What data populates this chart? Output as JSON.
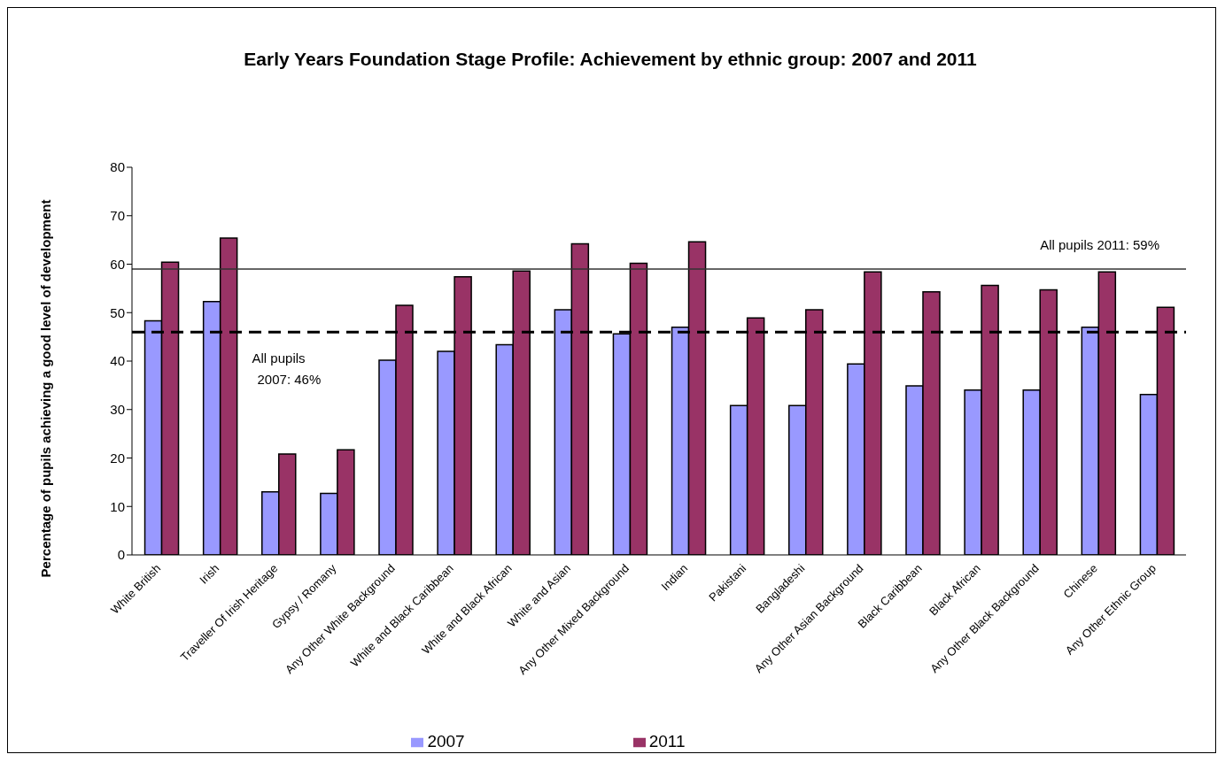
{
  "chart_data": {
    "type": "bar",
    "title": "Early Years Foundation Stage Profile: Achievement by ethnic group: 2007 and 2011",
    "ylabel": "Percentage of pupils achieving a good level of development",
    "categories": [
      "White British",
      "Irish",
      "Traveller Of Irish Heritage",
      "Gypsy / Romany",
      "Any Other White Background",
      "White and Black Caribbean",
      "White and Black African",
      "White and Asian",
      "Any Other Mixed Background",
      "Indian",
      "Pakistani",
      "Bangladeshi",
      "Any Other Asian Background",
      "Black Caribbean",
      "Black African",
      "Any Other Black Background",
      "Chinese",
      "Any Other Ethnic Group"
    ],
    "series": [
      {
        "name": "2007",
        "color": "#9999ff",
        "values": [
          48.3,
          52.3,
          13,
          12.7,
          40.2,
          42,
          43.4,
          50.6,
          45.6,
          47,
          30.8,
          30.8,
          39.4,
          34.9,
          34,
          34,
          47,
          33.1
        ]
      },
      {
        "name": "2011",
        "color": "#993366",
        "values": [
          60.4,
          65.4,
          20.8,
          21.7,
          51.5,
          57.4,
          58.6,
          64.2,
          60.2,
          64.6,
          48.9,
          50.6,
          58.4,
          54.3,
          55.6,
          54.7,
          58.4,
          51.1
        ]
      }
    ],
    "ylim": [
      0,
      80
    ],
    "yticks": [
      0,
      10,
      20,
      30,
      40,
      50,
      60,
      70,
      80
    ],
    "ref_lines": [
      {
        "axis": "y",
        "value": 59,
        "label": "All pupils 2011: 59%",
        "line_style": "solid",
        "color": "#333333"
      },
      {
        "axis": "y",
        "value": 46,
        "label": "All pupils 2007: 46%",
        "line_style": "dashed",
        "color": "#000000"
      }
    ],
    "legend": "bottom"
  }
}
